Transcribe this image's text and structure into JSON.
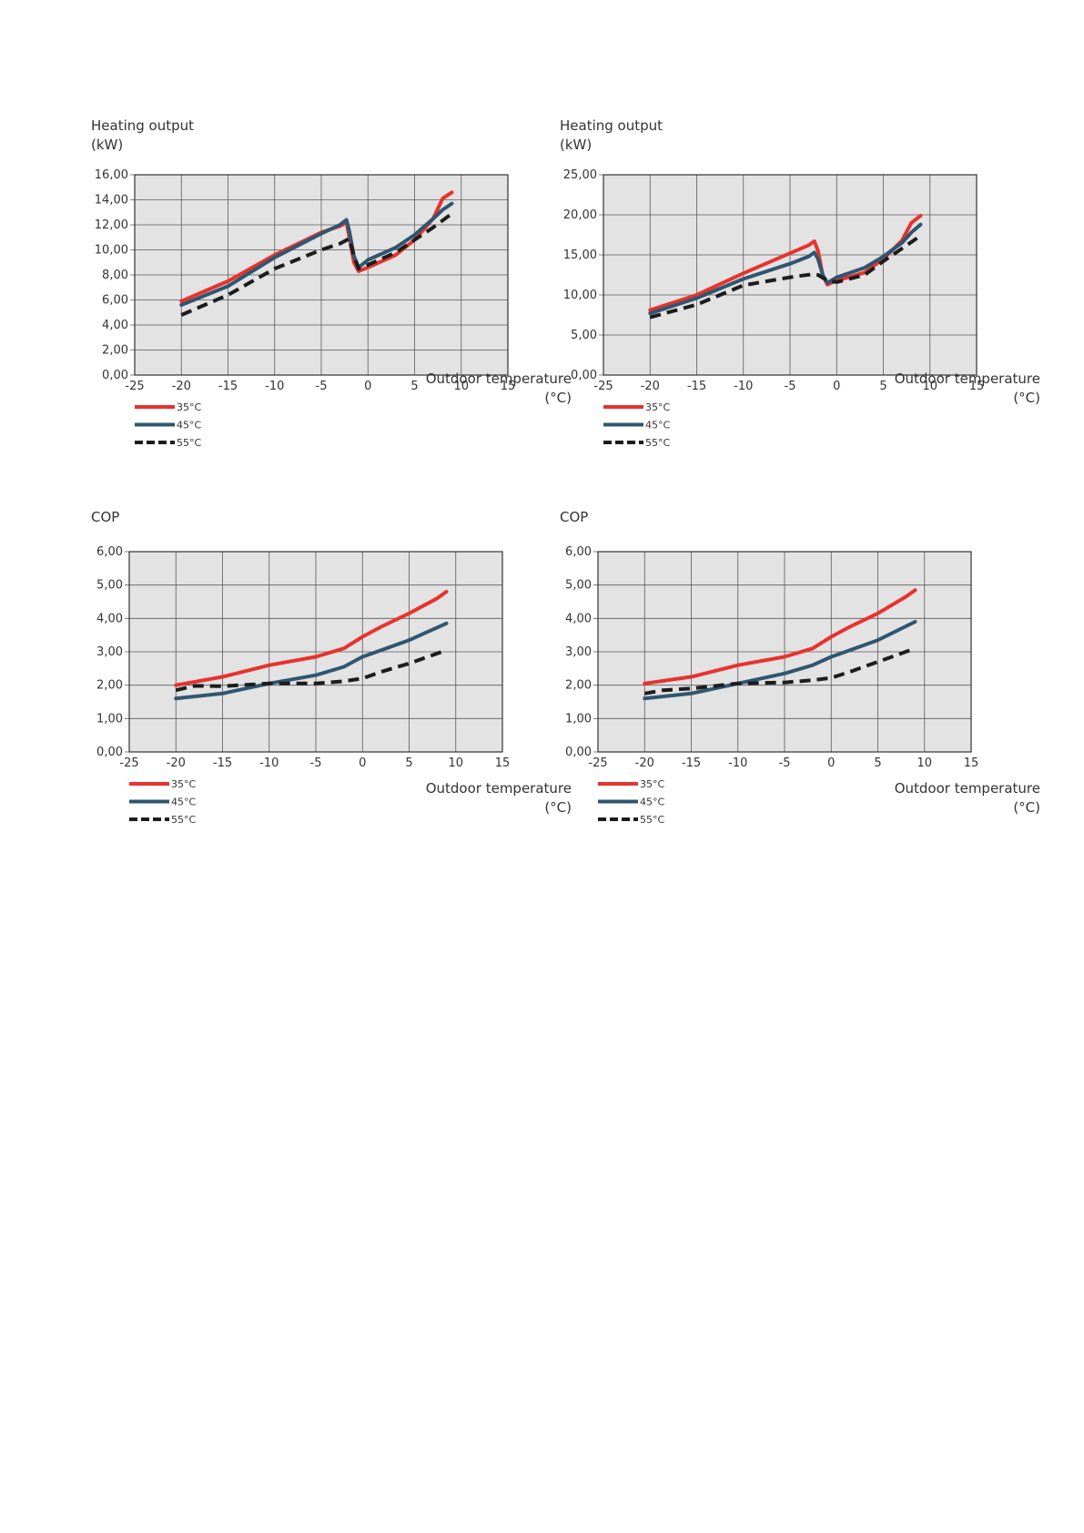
{
  "colors": {
    "s35": "#e8322d",
    "s45": "#2f5670",
    "s55": "#1c1c1c",
    "plot_bg": "#e3e3e3",
    "grid": "#5a5a5a"
  },
  "chart_data": [
    {
      "type": "line",
      "ylabel_line1": "Heating output",
      "ylabel_line2": "(kW)",
      "xlabel_line1": "Outdoor temperature",
      "xlabel_line2": "(°C)",
      "xlim": [
        -25,
        15
      ],
      "ylim": [
        0,
        16
      ],
      "xticks": [
        -25,
        -20,
        -15,
        -10,
        -5,
        0,
        5,
        10,
        15
      ],
      "xtick_labels": [
        "-25",
        "-20",
        "-15",
        "-10",
        "-5",
        "0",
        "5",
        "10",
        "15"
      ],
      "yticks": [
        0,
        2,
        4,
        6,
        8,
        10,
        12,
        14,
        16
      ],
      "ytick_labels": [
        "0,00",
        "2,00",
        "4,00",
        "6,00",
        "8,00",
        "10,00",
        "12,00",
        "14,00",
        "16,00"
      ],
      "grid": true,
      "legend": "bottom-left",
      "series": [
        {
          "name": "35°C",
          "color": "#e8322d",
          "style": "solid",
          "x": [
            -20,
            -15,
            -10,
            -5,
            -3,
            -2.3,
            -2,
            -1.5,
            -1,
            0,
            3,
            5,
            7,
            8,
            9
          ],
          "y": [
            5.9,
            7.5,
            9.6,
            11.4,
            11.9,
            12.2,
            11,
            9,
            8.3,
            8.6,
            9.6,
            10.8,
            12.5,
            14.1,
            14.6
          ]
        },
        {
          "name": "45°C",
          "color": "#2f5670",
          "style": "solid",
          "x": [
            -20,
            -15,
            -10,
            -5,
            -3,
            -2.3,
            -2,
            -1.5,
            -1,
            0,
            3,
            5,
            7,
            8,
            9
          ],
          "y": [
            5.6,
            7.1,
            9.4,
            11.3,
            12,
            12.4,
            11.5,
            9.5,
            8.6,
            9.2,
            10.2,
            11.2,
            12.5,
            13.2,
            13.7
          ]
        },
        {
          "name": "55°C",
          "color": "#1c1c1c",
          "style": "dashed",
          "x": [
            -20,
            -15,
            -10,
            -5,
            -3,
            -2,
            -1.5,
            -1,
            0,
            3,
            5,
            7,
            9
          ],
          "y": [
            4.8,
            6.4,
            8.5,
            10,
            10.5,
            10.9,
            9.5,
            8.5,
            8.8,
            9.8,
            10.8,
            11.8,
            12.9
          ]
        }
      ]
    },
    {
      "type": "line",
      "ylabel_line1": "Heating output",
      "ylabel_line2": "(kW)",
      "xlabel_line1": "Outdoor temperature",
      "xlabel_line2": "(°C)",
      "xlim": [
        -25,
        15
      ],
      "ylim": [
        0,
        25
      ],
      "xticks": [
        -25,
        -20,
        -15,
        -10,
        -5,
        0,
        5,
        10,
        15
      ],
      "xtick_labels": [
        "-25",
        "-20",
        "-15",
        "-10",
        "-5",
        "0",
        "5",
        "10",
        "15"
      ],
      "yticks": [
        0,
        5,
        10,
        15,
        20,
        25
      ],
      "ytick_labels": [
        "0,00",
        "5,00",
        "10,00",
        "15,00",
        "20,00",
        "25,00"
      ],
      "grid": true,
      "legend": "bottom-left",
      "series": [
        {
          "name": "35°C",
          "color": "#e8322d",
          "style": "solid",
          "x": [
            -20,
            -15,
            -10,
            -5,
            -3,
            -2.4,
            -2,
            -1.5,
            -1,
            0,
            3,
            5,
            7,
            8,
            9
          ],
          "y": [
            8.1,
            10,
            12.7,
            15.2,
            16.2,
            16.7,
            15.5,
            12.5,
            11.3,
            11.8,
            12.8,
            14.5,
            16.8,
            19,
            19.9
          ]
        },
        {
          "name": "45°C",
          "color": "#2f5670",
          "style": "solid",
          "x": [
            -20,
            -15,
            -10,
            -5,
            -3,
            -2.4,
            -2,
            -1.5,
            -1,
            0,
            3,
            5,
            7,
            8,
            9
          ],
          "y": [
            7.7,
            9.6,
            12,
            13.9,
            14.8,
            15.3,
            14.5,
            12.5,
            11.5,
            12.2,
            13.4,
            14.8,
            16.5,
            17.8,
            18.8
          ]
        },
        {
          "name": "55°C",
          "color": "#1c1c1c",
          "style": "dashed",
          "x": [
            -20,
            -15,
            -10,
            -5,
            -2.5,
            -2,
            -1,
            0,
            3,
            5,
            7,
            9
          ],
          "y": [
            7.2,
            8.8,
            11.2,
            12.2,
            12.6,
            12.5,
            11.8,
            11.6,
            12.5,
            14.2,
            15.8,
            17.4
          ]
        }
      ]
    },
    {
      "type": "line",
      "ylabel_line1": "COP",
      "xlabel_line1": "Outdoor temperature",
      "xlabel_line2": "(°C)",
      "xlim": [
        -25,
        15
      ],
      "ylim": [
        0,
        6
      ],
      "xticks": [
        -25,
        -20,
        -15,
        -10,
        -5,
        0,
        5,
        10,
        15
      ],
      "xtick_labels": [
        "-25",
        "-20",
        "-15",
        "-10",
        "-5",
        "0",
        "5",
        "10",
        "15"
      ],
      "yticks": [
        0,
        1,
        2,
        3,
        4,
        5,
        6
      ],
      "ytick_labels": [
        "0,00",
        "1,00",
        "2,00",
        "3,00",
        "4,00",
        "5,00",
        "6,00"
      ],
      "grid": true,
      "legend": "bottom-left",
      "series": [
        {
          "name": "35°C",
          "color": "#e8322d",
          "style": "solid",
          "x": [
            -20,
            -15,
            -10,
            -5,
            -2,
            0,
            2,
            5,
            8,
            9
          ],
          "y": [
            2,
            2.25,
            2.6,
            2.85,
            3.1,
            3.45,
            3.75,
            4.15,
            4.6,
            4.8
          ]
        },
        {
          "name": "45°C",
          "color": "#2f5670",
          "style": "solid",
          "x": [
            -20,
            -15,
            -10,
            -5,
            -2,
            0,
            2,
            5,
            9
          ],
          "y": [
            1.6,
            1.75,
            2.05,
            2.3,
            2.55,
            2.85,
            3.05,
            3.35,
            3.85
          ]
        },
        {
          "name": "55°C",
          "color": "#1c1c1c",
          "style": "dashed",
          "x": [
            -20,
            -18,
            -15,
            -10,
            -5,
            -2,
            0,
            2,
            5,
            9
          ],
          "y": [
            1.85,
            1.98,
            1.97,
            2.05,
            2.05,
            2.12,
            2.2,
            2.4,
            2.65,
            3.05
          ]
        }
      ]
    },
    {
      "type": "line",
      "ylabel_line1": "COP",
      "xlabel_line1": "Outdoor temperature",
      "xlabel_line2": "(°C)",
      "xlim": [
        -25,
        15
      ],
      "ylim": [
        0,
        6
      ],
      "xticks": [
        -25,
        -20,
        -15,
        -10,
        -5,
        0,
        5,
        10,
        15
      ],
      "xtick_labels": [
        "-25",
        "-20",
        "-15",
        "-10",
        "-5",
        "0",
        "5",
        "10",
        "15"
      ],
      "yticks": [
        0,
        1,
        2,
        3,
        4,
        5,
        6
      ],
      "ytick_labels": [
        "0,00",
        "1,00",
        "2,00",
        "3,00",
        "4,00",
        "5,00",
        "6,00"
      ],
      "grid": true,
      "legend": "bottom-left",
      "series": [
        {
          "name": "35°C",
          "color": "#e8322d",
          "style": "solid",
          "x": [
            -20,
            -15,
            -10,
            -5,
            -2,
            0,
            2,
            5,
            8,
            9
          ],
          "y": [
            2.05,
            2.25,
            2.6,
            2.85,
            3.1,
            3.45,
            3.75,
            4.15,
            4.65,
            4.85
          ]
        },
        {
          "name": "45°C",
          "color": "#2f5670",
          "style": "solid",
          "x": [
            -20,
            -15,
            -10,
            -5,
            -2,
            0,
            2,
            5,
            9
          ],
          "y": [
            1.6,
            1.75,
            2.05,
            2.35,
            2.6,
            2.85,
            3.05,
            3.35,
            3.9
          ]
        },
        {
          "name": "55°C",
          "color": "#1c1c1c",
          "style": "dashed",
          "x": [
            -20,
            -18,
            -15,
            -10,
            -5,
            -2,
            0,
            2,
            5,
            9
          ],
          "y": [
            1.75,
            1.85,
            1.9,
            2.05,
            2.08,
            2.15,
            2.22,
            2.4,
            2.7,
            3.1
          ]
        }
      ]
    }
  ]
}
